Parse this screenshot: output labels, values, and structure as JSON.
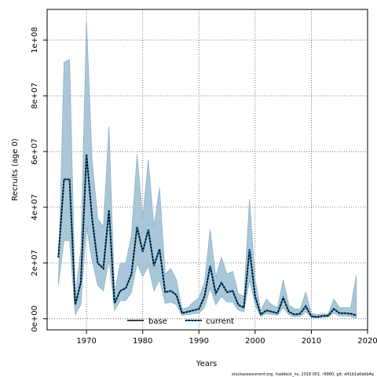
{
  "chart_data": {
    "type": "line",
    "xlabel": "Years",
    "ylabel": "Recruits (age 0)",
    "xlim": [
      1963,
      2020
    ],
    "ylim": [
      -4000000,
      111000000
    ],
    "xticks": [
      1970,
      1980,
      1990,
      2000,
      2010,
      2020
    ],
    "yticks": [
      0,
      20000000,
      40000000,
      60000000,
      80000000,
      100000000
    ],
    "ytick_labels": [
      "0e+00",
      "2e+07",
      "4e+07",
      "6e+07",
      "8e+07",
      "1e+08"
    ],
    "grid": true,
    "legend": {
      "placement": "bottom-center",
      "entries": [
        "base",
        "current"
      ]
    },
    "caption": "stockassessment.org, haddock_ns, 2018 001, r9960, git: d41b1a0ebb4a",
    "colors": {
      "band_fill": "#a9c7d8",
      "band_stroke": "#8eb4c9",
      "base_line": "#000000",
      "current_line": "#1a6fa5"
    },
    "x": [
      1965,
      1966,
      1967,
      1968,
      1969,
      1970,
      1971,
      1972,
      1973,
      1974,
      1975,
      1976,
      1977,
      1978,
      1979,
      1980,
      1981,
      1982,
      1983,
      1984,
      1985,
      1986,
      1987,
      1988,
      1989,
      1990,
      1991,
      1992,
      1993,
      1994,
      1995,
      1996,
      1997,
      1998,
      1999,
      2000,
      2001,
      2002,
      2003,
      2004,
      2005,
      2006,
      2007,
      2008,
      2009,
      2010,
      2011,
      2012,
      2013,
      2014,
      2015,
      2016,
      2017,
      2018
    ],
    "series": [
      {
        "name": "base",
        "values": [
          22000000,
          50000000,
          50000000,
          5000000,
          13000000,
          59000000,
          36000000,
          20000000,
          18000000,
          39000000,
          5500000,
          10000000,
          11000000,
          16000000,
          33000000,
          24000000,
          32000000,
          19000000,
          25000000,
          9500000,
          10000000,
          8500000,
          2000000,
          2500000,
          3000000,
          3500000,
          8000000,
          19000000,
          9000000,
          13000000,
          9500000,
          10000000,
          5000000,
          4000000,
          25000000,
          8000000,
          1500000,
          3000000,
          2500000,
          2000000,
          7500000,
          2500000,
          1500000,
          1800000,
          4500000,
          900000,
          600000,
          1000000,
          1100000,
          3500000,
          2000000,
          2000000,
          1800000,
          1200000
        ]
      },
      {
        "name": "current",
        "values": [
          22000000,
          50000000,
          50000000,
          5000000,
          13000000,
          59000000,
          36000000,
          20000000,
          18000000,
          39000000,
          5500000,
          10000000,
          11000000,
          16000000,
          33000000,
          24000000,
          32000000,
          19000000,
          25000000,
          9500000,
          10000000,
          8500000,
          2000000,
          2500000,
          3000000,
          3500000,
          8000000,
          19000000,
          9000000,
          13000000,
          9500000,
          10000000,
          5000000,
          4000000,
          25000000,
          8000000,
          1500000,
          3000000,
          2500000,
          2000000,
          7500000,
          2500000,
          1500000,
          1800000,
          4500000,
          900000,
          600000,
          1000000,
          1100000,
          3500000,
          2000000,
          2000000,
          1800000,
          1200000
        ]
      }
    ],
    "upper": [
      12000000,
      92000000,
      93000000,
      8000000,
      25000000,
      107000000,
      57000000,
      36000000,
      33000000,
      69000000,
      9000000,
      20000000,
      20000000,
      30000000,
      59000000,
      36000000,
      57000000,
      33000000,
      47000000,
      16000000,
      18000000,
      14000000,
      3500000,
      4000000,
      6000000,
      7500000,
      13000000,
      32000000,
      15000000,
      22000000,
      16000000,
      17000000,
      9000000,
      8000000,
      43000000,
      14000000,
      3000000,
      7000000,
      5000000,
      4000000,
      14000000,
      5000000,
      3500000,
      3500000,
      9500000,
      2000000,
      1500000,
      1700000,
      1800000,
      7000000,
      4000000,
      4000000,
      4000000,
      15500000
    ],
    "lower": [
      12000000,
      28000000,
      28000000,
      1500000,
      5000000,
      33000000,
      21000000,
      12000000,
      10000000,
      21000000,
      3000000,
      6500000,
      6500000,
      9500000,
      20000000,
      15000000,
      19000000,
      10000000,
      14000000,
      5500000,
      6000000,
      5000000,
      1200000,
      1500000,
      1800000,
      2000000,
      4000000,
      11000000,
      5000000,
      8000000,
      6000000,
      6000000,
      3000000,
      2500000,
      14000000,
      5000000,
      800000,
      1800000,
      1500000,
      1200000,
      4000000,
      1500000,
      700000,
      800000,
      2500000,
      400000,
      300000,
      500000,
      600000,
      2000000,
      1000000,
      1000000,
      800000,
      100000
    ]
  }
}
